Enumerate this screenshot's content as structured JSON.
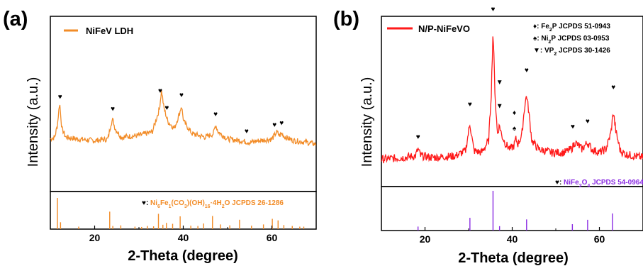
{
  "panels": [
    {
      "panel_label": "(a)",
      "legend": "NiFeV LDH",
      "line_color": "#F28C28",
      "marker": "♥",
      "reference_card": {
        "symbol": "♥:",
        "formula_parts": [
          "Ni",
          "6",
          "Fe",
          "1",
          "(CO",
          "3",
          ")(OH)",
          "16",
          "·4H",
          "2",
          "O"
        ],
        "jcpds": "JCPDS 26-1286",
        "color": "#F28C28"
      },
      "chart_data": {
        "type": "line",
        "xlabel": "2-Theta (degree)",
        "ylabel": "Intensity (a.u.)",
        "xlim": [
          10,
          70
        ],
        "ylim": [
          0,
          100
        ],
        "xticks": [
          20,
          40,
          60
        ],
        "grid": false,
        "series": [
          {
            "name": "NiFeV LDH",
            "x": [
              10,
              11,
              11.6,
              12.1,
              12.6,
              13.5,
              16,
              20,
              23,
              23.7,
              24.1,
              24.6,
              26,
              30,
              33,
              34.6,
              35.1,
              35.6,
              36.5,
              38,
              39.2,
              39.6,
              40.1,
              42,
              45,
              46.8,
              47.3,
              47.9,
              50,
              53,
              55,
              57,
              60,
              60.6,
              61.1,
              61.7,
              62.2,
              63,
              65,
              68,
              70
            ],
            "y": [
              30,
              31,
              38,
              51,
              36,
              31,
              30,
              29,
              30,
              39,
              41,
              36,
              31,
              32,
              34,
              47,
              58,
              48,
              40,
              36,
              45,
              49,
              40,
              33,
              31,
              33,
              38,
              34,
              30,
              29,
              28,
              29,
              30,
              32,
              34,
              32,
              33,
              31,
              29,
              28,
              27
            ]
          }
        ],
        "peak_markers_x": [
          12.2,
          24.1,
          34.8,
          36.3,
          39.6,
          47.3,
          54.3,
          60.6,
          62.2
        ]
      },
      "reference_sticks": {
        "x": [
          11.6,
          12.3,
          16.4,
          23.4,
          24.1,
          25.9,
          29.1,
          30.6,
          31.9,
          33.3,
          34.4,
          35.4,
          36.2,
          37.6,
          39.3,
          41.7,
          43.3,
          44.6,
          46.6,
          48.4,
          50.5,
          52.7,
          55.4,
          58.1,
          60.1,
          61.4,
          62.7,
          64.6,
          66.3,
          67.2
        ],
        "y": [
          100,
          22,
          8,
          56,
          10,
          12,
          8,
          7,
          10,
          9,
          49,
          14,
          20,
          17,
          41,
          11,
          10,
          18,
          42,
          15,
          12,
          30,
          11,
          15,
          33,
          28,
          13,
          10,
          8,
          8
        ]
      }
    },
    {
      "panel_label": "(b)",
      "legend": "N/P-NiFeVO",
      "line_color": "#FF1A1A",
      "phase_legend": [
        {
          "symbol": "♦",
          "formula_parts": [
            "Fe",
            "2",
            "P"
          ],
          "jcpds": "JCPDS 51-0943"
        },
        {
          "symbol": "♠",
          "formula_parts": [
            "Ni",
            "2",
            "P"
          ],
          "jcpds": "JCPDS 03-0953"
        },
        {
          "symbol": "▼",
          "formula_parts": [
            "VP",
            "2"
          ],
          "jcpds": "JCPDS 30-1426"
        }
      ],
      "reference_card": {
        "symbol": "♥:",
        "formula_parts": [
          "NiFe",
          "2",
          "O",
          "4"
        ],
        "jcpds": "JCPDS 54-0964",
        "color": "#8A2BE2"
      },
      "chart_data": {
        "type": "line",
        "xlabel": "2-Theta (degree)",
        "ylabel": "Intensity (a.u.)",
        "xlim": [
          10,
          70
        ],
        "ylim": [
          0,
          100
        ],
        "xticks": [
          20,
          40,
          60
        ],
        "grid": false,
        "series": [
          {
            "name": "N/P-NiFeVO",
            "x": [
              10,
              15,
              17.8,
              18.4,
              19,
              22,
              27,
              29.3,
              30.3,
              31.2,
              33,
              34.6,
              35.2,
              35.6,
              36.1,
              36.6,
              37.1,
              37.6,
              38.5,
              39.5,
              40.4,
              40.8,
              41.3,
              42.2,
              42.8,
              43.3,
              43.8,
              44.5,
              46,
              49,
              52,
              53.6,
              54.4,
              56,
              57.3,
              58.2,
              60,
              61.5,
              62.6,
              63.2,
              63.8,
              64.8,
              66,
              68,
              70
            ],
            "y": [
              16,
              17,
              18,
              22,
              18,
              17,
              18,
              21,
              37,
              21,
              20,
              27,
              55,
              92,
              52,
              31,
              36,
              30,
              25,
              22,
              24,
              28,
              25,
              30,
              46,
              54,
              44,
              27,
              22,
              20,
              20,
              22,
              26,
              22,
              26,
              22,
              20,
              22,
              31,
              44,
              32,
              21,
              19,
              18,
              17
            ]
          }
        ],
        "peak_markers": [
          {
            "symbol": "♥",
            "x": 18.4,
            "y_level": 28
          },
          {
            "symbol": "♥",
            "x": 30.3,
            "y_level": 47
          },
          {
            "symbol": "♥",
            "x": 35.6,
            "y_level": 103
          },
          {
            "symbol": "▼",
            "x": 37.1,
            "y_level": 60
          },
          {
            "symbol": "▼",
            "x": 37.1,
            "y_level": 46
          },
          {
            "symbol": "♦",
            "x": 40.5,
            "y_level": 42
          },
          {
            "symbol": "♠",
            "x": 40.5,
            "y_level": 33
          },
          {
            "symbol": "♥",
            "x": 43.3,
            "y_level": 67
          },
          {
            "symbol": "♥",
            "x": 53.9,
            "y_level": 34
          },
          {
            "symbol": "♥",
            "x": 57.3,
            "y_level": 37
          },
          {
            "symbol": "♥",
            "x": 63.2,
            "y_level": 57
          }
        ]
      },
      "reference_sticks": {
        "x": [
          18.4,
          30.3,
          35.6,
          37.1,
          43.3,
          53.8,
          57.3,
          63.0
        ],
        "y": [
          10,
          32,
          100,
          11,
          28,
          16,
          27,
          43
        ]
      }
    }
  ]
}
